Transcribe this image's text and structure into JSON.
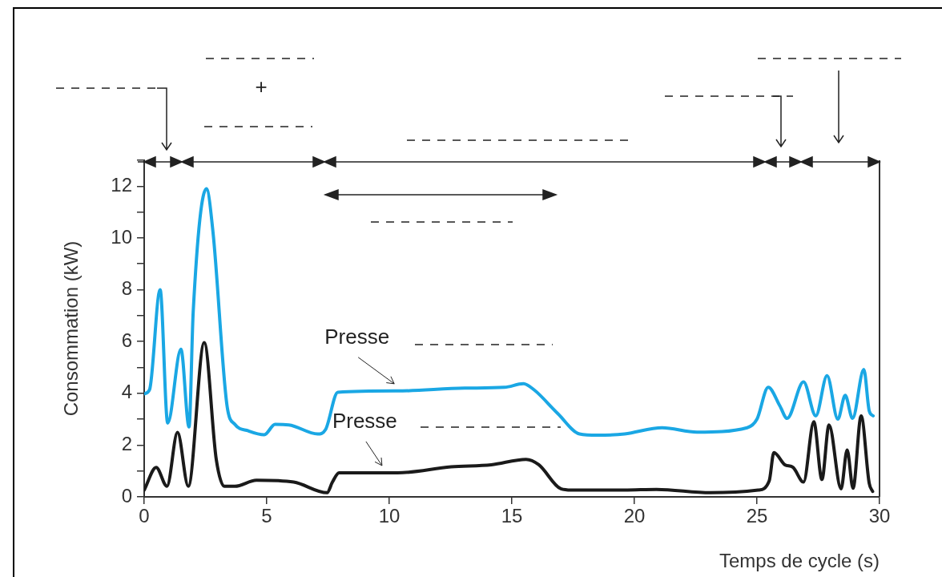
{
  "chart_data": {
    "type": "line",
    "xlabel": "Temps de cycle (s)",
    "ylabel": "Consommation (kW)",
    "xlim": [
      0,
      30
    ],
    "xticks": [
      0,
      5,
      10,
      15,
      20,
      25,
      30
    ],
    "ylim": [
      0,
      13
    ],
    "yticks": [
      0,
      {
        "value": 1,
        "label": null
      },
      2,
      {
        "value": 3,
        "label": null
      },
      4,
      {
        "value": 5,
        "label": null
      },
      6,
      {
        "value": 7,
        "label": null
      },
      8,
      {
        "value": 9,
        "label": null
      },
      10,
      {
        "value": 11,
        "label": null
      },
      12,
      {
        "value": 13,
        "label": null
      }
    ],
    "grid": false,
    "legend": false,
    "marker": "none",
    "line_style": "solid",
    "series": [
      {
        "color": "#1aa7e4",
        "x": [
          0,
          0.22,
          0.65,
          0.96,
          1.5,
          1.83,
          2.0,
          2.54,
          2.81,
          3.38,
          3.7,
          4.25,
          4.9,
          5.34,
          5.9,
          7.08,
          7.4,
          7.9,
          10.34,
          13.07,
          14.7,
          15.47,
          15.9,
          16.88,
          17.76,
          18.5,
          19.6,
          21.13,
          22.55,
          24.6,
          25.0,
          25.46,
          25.93,
          26.23,
          26.9,
          27.4,
          27.86,
          28.3,
          28.6,
          28.9,
          29.36,
          29.58,
          29.74
        ],
        "values": [
          3.98,
          4.14,
          8.0,
          2.85,
          5.7,
          2.7,
          7.15,
          11.9,
          10.2,
          3.52,
          2.8,
          2.55,
          2.4,
          2.8,
          2.78,
          2.43,
          2.6,
          4.04,
          4.09,
          4.2,
          4.23,
          4.37,
          4.14,
          3.21,
          2.43,
          2.38,
          2.43,
          2.67,
          2.5,
          2.67,
          3.0,
          4.23,
          3.52,
          3.03,
          4.44,
          3.13,
          4.68,
          3.0,
          3.92,
          3.03,
          4.92,
          3.32,
          3.13
        ]
      },
      {
        "color": "#1a1a1a",
        "x": [
          0,
          0.49,
          0.93,
          1.36,
          1.8,
          2.45,
          2.94,
          3.27,
          3.7,
          4.58,
          6.1,
          7.46,
          7.68,
          7.95,
          10.34,
          12.52,
          14.16,
          15.58,
          16.1,
          17.0,
          17.43,
          19.6,
          20.9,
          23.1,
          25.05,
          25.5,
          25.69,
          26.14,
          26.47,
          26.9,
          27.32,
          27.65,
          27.94,
          28.43,
          28.68,
          28.92,
          29.25,
          29.58,
          29.72
        ],
        "values": [
          0.26,
          1.14,
          0.41,
          2.49,
          0.41,
          5.96,
          1.45,
          0.41,
          0.41,
          0.64,
          0.57,
          0.16,
          0.57,
          0.93,
          0.93,
          1.16,
          1.24,
          1.45,
          1.24,
          0.31,
          0.26,
          0.26,
          0.29,
          0.16,
          0.26,
          0.62,
          1.71,
          1.24,
          1.14,
          0.57,
          2.9,
          0.67,
          2.78,
          0.31,
          1.81,
          0.33,
          3.13,
          0.52,
          0.21
        ]
      }
    ],
    "annotations": [
      {
        "text": "Presse",
        "x": 10.3,
        "y": 4.09
      },
      {
        "text": "Presse",
        "x": 9.8,
        "y": 0.93
      },
      "+"
    ]
  }
}
